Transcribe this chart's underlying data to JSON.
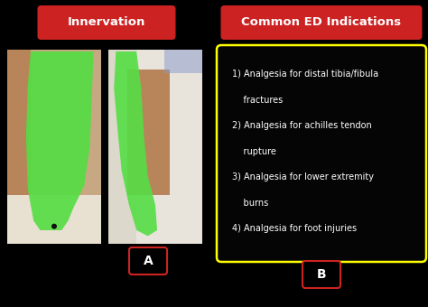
{
  "bg_color": "#000000",
  "left_title": "Innervation",
  "right_title": "Common ED Indications",
  "title_bg_color": "#cc2222",
  "title_text_color": "#ffffff",
  "title_fontsize": 9.5,
  "label_a": "A",
  "label_b": "B",
  "label_border_color": "#cc2222",
  "label_text_color": "#ffffff",
  "label_fontsize": 10,
  "box_border_color": "#ffff00",
  "box_bg_color": "#050505",
  "indications_text_color": "#ffffff",
  "indications_fontsize": 7.0,
  "indications": [
    "1) Analgesia for distal tibia/fibula",
    "    fractures",
    "2) Analgesia for achilles tendon",
    "    rupture",
    "3) Analgesia for lower extremity",
    "    burns",
    "4) Analgesia for foot injuries"
  ],
  "photo1_bg": "#c8a882",
  "photo2_bg": "#d8cfc0",
  "green_color": "#55dd44",
  "skin_color": "#b8855a"
}
